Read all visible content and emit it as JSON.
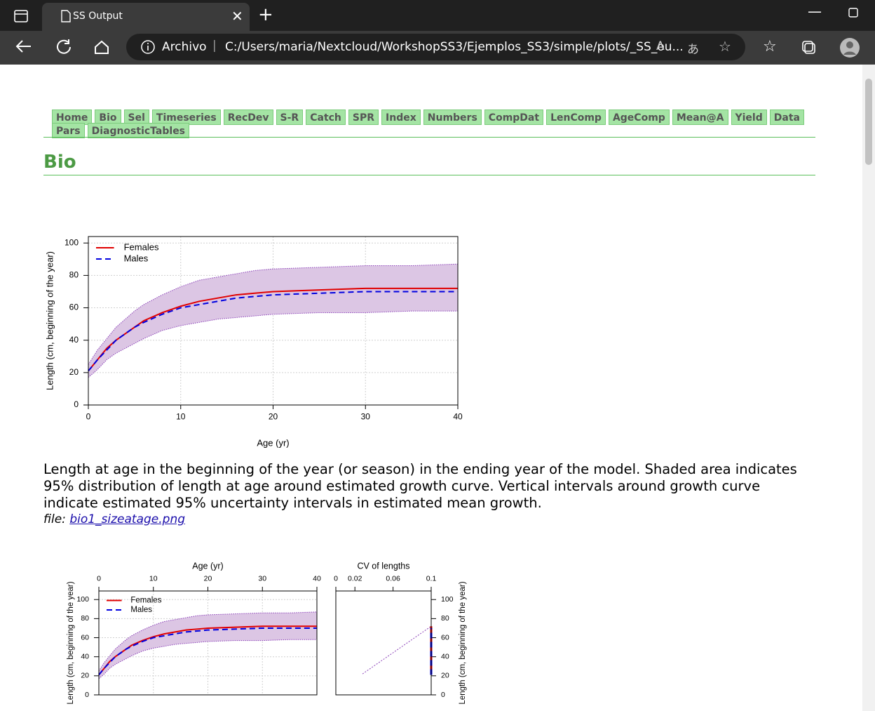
{
  "browser": {
    "tab_title": "SS Output",
    "protocol_label": "Archivo",
    "url": "C:/Users/maria/Nextcloud/WorkshopSS3/Ejemplos_SS3/simple/plots/_SS_ou..."
  },
  "nav": [
    "Home",
    "Bio",
    "Sel",
    "Timeseries",
    "RecDev",
    "S-R",
    "Catch",
    "SPR",
    "Index",
    "Numbers",
    "CompDat",
    "LenComp",
    "AgeComp",
    "Mean@A",
    "Yield",
    "Data",
    "Pars",
    "DiagnosticTables"
  ],
  "section_title": "Bio",
  "caption": "Length at age in the beginning of the year (or season) in the ending year of the model. Shaded area indicates 95% distribution of length at age around estimated growth curve. Vertical intervals around growth curve indicate estimated 95% uncertainty intervals in estimated mean growth.",
  "file_label": "file:",
  "file_link": "bio1_sizeatage.png",
  "chart_data": [
    {
      "type": "line",
      "xlabel": "Age (yr)",
      "ylabel": "Length (cm, beginning of the year)",
      "x": [
        0,
        1,
        2,
        3,
        4,
        5,
        6,
        8,
        10,
        12,
        14,
        16,
        18,
        20,
        25,
        30,
        35,
        40
      ],
      "series": [
        {
          "name": "Females",
          "color": "#e00000",
          "line_style": "solid",
          "values": [
            21,
            28,
            35,
            40,
            44,
            48,
            52,
            57,
            61,
            64,
            66,
            68,
            69,
            70,
            71,
            72,
            72,
            72
          ]
        },
        {
          "name": "Males",
          "color": "#0000e0",
          "line_style": "dashed",
          "values": [
            21,
            28,
            34,
            40,
            44,
            48,
            51,
            56,
            60,
            62,
            64,
            66,
            67,
            68,
            69,
            70,
            70,
            70
          ]
        }
      ],
      "band": {
        "color": "#dcc6e4",
        "edge_color": "#8a3fb8",
        "upper": [
          25,
          34,
          41,
          48,
          53,
          58,
          62,
          68,
          73,
          77,
          79,
          81,
          83,
          84,
          85,
          86,
          86,
          87
        ],
        "lower": [
          17,
          22,
          28,
          32,
          35,
          38,
          41,
          46,
          49,
          51,
          53,
          54,
          55,
          56,
          57,
          57,
          58,
          58
        ]
      },
      "xlim": [
        0,
        40
      ],
      "ylim": [
        0,
        104
      ],
      "xticks": [
        0,
        10,
        20,
        30,
        40
      ],
      "yticks": [
        0,
        20,
        40,
        60,
        80,
        100
      ],
      "grid": true,
      "legend": "upper left",
      "x_axis_side": "bottom",
      "y_axis_side": "left"
    },
    {
      "type": "line",
      "title": "Age (yr)",
      "ylabel": "Length (cm, beginning of the year)",
      "x": [
        0,
        1,
        2,
        3,
        4,
        5,
        6,
        8,
        10,
        12,
        14,
        16,
        18,
        20,
        25,
        30,
        35,
        40
      ],
      "series": [
        {
          "name": "Females",
          "color": "#e00000",
          "line_style": "solid",
          "values": [
            21,
            28,
            35,
            40,
            44,
            48,
            52,
            57,
            61,
            64,
            66,
            68,
            69,
            70,
            71,
            72,
            72,
            72
          ]
        },
        {
          "name": "Males",
          "color": "#0000e0",
          "line_style": "dashed",
          "values": [
            21,
            28,
            34,
            40,
            44,
            48,
            51,
            56,
            60,
            62,
            64,
            66,
            67,
            68,
            69,
            70,
            70,
            70
          ]
        }
      ],
      "band": {
        "color": "#dcc6e4",
        "edge_color": "#8a3fb8",
        "upper": [
          25,
          34,
          41,
          48,
          53,
          58,
          62,
          68,
          73,
          77,
          79,
          81,
          83,
          84,
          85,
          86,
          86,
          87
        ],
        "lower": [
          17,
          22,
          28,
          32,
          35,
          38,
          41,
          46,
          49,
          51,
          53,
          54,
          55,
          56,
          57,
          57,
          58,
          58
        ]
      },
      "xlim": [
        0,
        40
      ],
      "ylim": [
        0,
        109
      ],
      "xticks": [
        0,
        10,
        20,
        30,
        40
      ],
      "yticks": [
        0,
        20,
        40,
        60,
        80,
        100
      ],
      "grid": true,
      "legend": "upper left",
      "x_axis_side": "top",
      "y_axis_side": "left"
    },
    {
      "type": "line",
      "title": "CV of lengths",
      "ylabel": "Length (cm, beginning of the year)",
      "series": [
        {
          "color": "#8a3fb8",
          "line_style": "dotted",
          "x": [
            0.028,
            0.1
          ],
          "values": [
            22,
            72
          ]
        },
        {
          "color": "#e00000",
          "line_style": "solid",
          "x": [
            0.1,
            0.1
          ],
          "values": [
            21,
            72
          ]
        },
        {
          "color": "#0000e0",
          "line_style": "dashed",
          "x": [
            0.1,
            0.1
          ],
          "values": [
            21,
            70
          ]
        }
      ],
      "xlim": [
        0,
        0.1
      ],
      "ylim": [
        0,
        109
      ],
      "xticks": [
        0,
        0.02,
        0.06,
        0.1
      ],
      "yticks": [
        0,
        20,
        40,
        60,
        80,
        100
      ],
      "grid": false,
      "x_axis_side": "top",
      "y_axis_side": "right"
    }
  ]
}
